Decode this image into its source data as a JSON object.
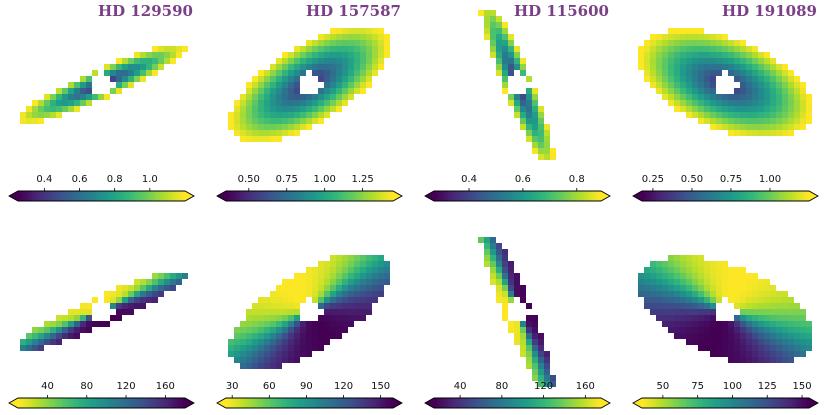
{
  "chart_data": [
    {
      "type": "heatmap",
      "title": "HD 129590",
      "row": "top",
      "map": "distance",
      "orientation": -24,
      "aspect": 0.16,
      "colorbar": {
        "range": [
          0.25,
          1.2
        ],
        "ticks": [
          0.4,
          0.6,
          0.8,
          1.0
        ],
        "tick_labels": [
          "0.4",
          "0.6",
          "0.8",
          "1.0"
        ],
        "cmap": "viridis"
      }
    },
    {
      "type": "heatmap",
      "title": "HD 157587",
      "row": "top",
      "map": "distance",
      "orientation": -32,
      "aspect": 0.42,
      "colorbar": {
        "range": [
          0.35,
          1.45
        ],
        "ticks": [
          0.5,
          0.75,
          1.0,
          1.25
        ],
        "tick_labels": [
          "0.50",
          "0.75",
          "1.00",
          "1.25"
        ],
        "cmap": "viridis"
      }
    },
    {
      "type": "heatmap",
      "title": "HD 115600",
      "row": "top",
      "map": "distance",
      "orientation": 68,
      "aspect": 0.16,
      "colorbar": {
        "range": [
          0.27,
          0.89
        ],
        "ticks": [
          0.4,
          0.6,
          0.8
        ],
        "tick_labels": [
          "0.4",
          "0.6",
          "0.8"
        ],
        "cmap": "viridis"
      }
    },
    {
      "type": "heatmap",
      "title": "HD 191089",
      "row": "top",
      "map": "distance",
      "orientation": 22,
      "aspect": 0.5,
      "colorbar": {
        "range": [
          0.18,
          1.25
        ],
        "ticks": [
          0.25,
          0.5,
          0.75,
          1.0
        ],
        "tick_labels": [
          "0.25",
          "0.50",
          "0.75",
          "1.00"
        ],
        "cmap": "viridis"
      }
    },
    {
      "type": "heatmap",
      "title": "",
      "row": "bottom",
      "map": "angle",
      "orientation": -24,
      "aspect": 0.16,
      "colorbar": {
        "range": [
          10,
          180
        ],
        "ticks": [
          40,
          80,
          120,
          160
        ],
        "tick_labels": [
          "40",
          "80",
          "120",
          "160"
        ],
        "cmap": "viridis_r"
      }
    },
    {
      "type": "heatmap",
      "title": "",
      "row": "bottom",
      "map": "angle",
      "orientation": -32,
      "aspect": 0.42,
      "colorbar": {
        "range": [
          25,
          160
        ],
        "ticks": [
          30,
          60,
          90,
          120,
          150
        ],
        "tick_labels": [
          "30",
          "60",
          "90",
          "120",
          "150"
        ],
        "cmap": "viridis_r"
      }
    },
    {
      "type": "heatmap",
      "title": "",
      "row": "bottom",
      "map": "angle",
      "orientation": 68,
      "aspect": 0.16,
      "colorbar": {
        "range": [
          15,
          175
        ],
        "ticks": [
          40,
          80,
          120,
          160
        ],
        "tick_labels": [
          "40",
          "80",
          "120",
          "160"
        ],
        "cmap": "viridis"
      }
    },
    {
      "type": "heatmap",
      "title": "",
      "row": "bottom",
      "map": "angle",
      "orientation": 22,
      "aspect": 0.5,
      "colorbar": {
        "range": [
          35,
          155
        ],
        "ticks": [
          50,
          75,
          100,
          125,
          150
        ],
        "tick_labels": [
          "50",
          "75",
          "100",
          "125",
          "150"
        ],
        "cmap": "viridis_r"
      }
    }
  ]
}
